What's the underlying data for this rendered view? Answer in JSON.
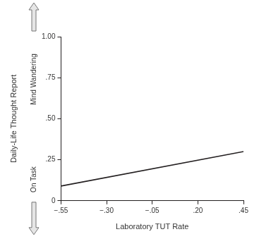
{
  "chart_data": {
    "type": "line",
    "xlabel": "Laboratory TUT Rate",
    "ylabel": "Daily-Life Thought Report",
    "annotations": [
      "Mind Wandering",
      "On Task"
    ],
    "x": [
      -0.55,
      0.45
    ],
    "values": [
      0.09,
      0.3
    ],
    "color": "#231f20",
    "xlim": [
      -0.55,
      0.45
    ],
    "xticks": [
      {
        "value": -0.55,
        "label": "−.55"
      },
      {
        "value": -0.3,
        "label": "−.30"
      },
      {
        "value": -0.05,
        "label": "−.05"
      },
      {
        "value": 0.2,
        "label": ".20"
      },
      {
        "value": 0.45,
        "label": ".45"
      }
    ],
    "ylim": [
      0,
      1
    ],
    "yticks": [
      0,
      {
        "value": 0.25,
        "label": ".25"
      },
      {
        "value": 0.5,
        "label": ".50"
      },
      {
        "value": 0.75,
        "label": ".75"
      },
      {
        "value": 1,
        "label": "1.00"
      }
    ],
    "grid": false
  }
}
